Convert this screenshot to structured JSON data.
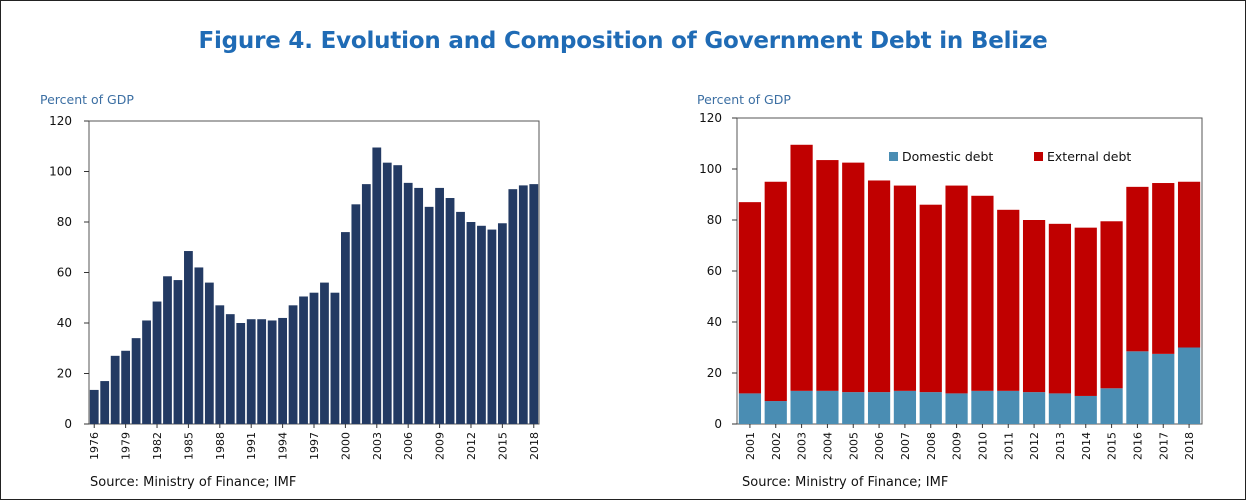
{
  "figure": {
    "title": "Figure 4. Evolution and Composition of Government Debt in Belize"
  },
  "chart_data": [
    {
      "type": "bar",
      "ylabel": "Percent of GDP",
      "source": "Source: Ministry of Finance; IMF",
      "ylim": [
        0,
        120
      ],
      "yticks": [
        0,
        20,
        40,
        60,
        80,
        100,
        120
      ],
      "x": [
        1976,
        1977,
        1978,
        1979,
        1980,
        1981,
        1982,
        1983,
        1984,
        1985,
        1986,
        1987,
        1988,
        1989,
        1990,
        1991,
        1992,
        1993,
        1994,
        1995,
        1996,
        1997,
        1998,
        1999,
        2000,
        2001,
        2002,
        2003,
        2004,
        2005,
        2006,
        2007,
        2008,
        2009,
        2010,
        2011,
        2012,
        2013,
        2014,
        2015,
        2016,
        2017,
        2018
      ],
      "x_tick_labels": [
        "1976",
        "1979",
        "1982",
        "1985",
        "1988",
        "1991",
        "1994",
        "1997",
        "2000",
        "2003",
        "2006",
        "2009",
        "2012",
        "2015",
        "2018"
      ],
      "values": [
        13.5,
        17,
        27,
        29,
        34,
        41,
        48.5,
        58.5,
        57,
        68.5,
        62,
        56,
        47,
        43.5,
        40,
        41.5,
        41.5,
        41,
        42,
        47,
        50.5,
        52,
        56,
        52,
        76,
        87,
        95,
        109.5,
        103.5,
        102.5,
        95.5,
        93.5,
        86,
        93.5,
        89.5,
        84,
        80,
        78.5,
        77,
        79.5,
        93,
        94.5,
        95
      ],
      "colors": {
        "bar": "#233a63"
      },
      "grid": false
    },
    {
      "type": "bar",
      "stacked": true,
      "ylabel": "Percent of GDP",
      "source": "Source: Ministry of Finance; IMF",
      "ylim": [
        0,
        120
      ],
      "yticks": [
        0,
        20,
        40,
        60,
        80,
        100,
        120
      ],
      "categories": [
        "2001",
        "2002",
        "2003",
        "2004",
        "2005",
        "2006",
        "2007",
        "2008",
        "2009",
        "2010",
        "2011",
        "2012",
        "2013",
        "2014",
        "2015",
        "2016",
        "2017",
        "2018"
      ],
      "series": [
        {
          "name": "Domestic debt",
          "color": "#4a8db3",
          "values": [
            12,
            9,
            13,
            13,
            12.5,
            12.5,
            13,
            12.5,
            12,
            13,
            13,
            12.5,
            12,
            11,
            14,
            28.5,
            27.5,
            30
          ]
        },
        {
          "name": "External debt",
          "color": "#c00000",
          "values": [
            75,
            86,
            96.5,
            90.5,
            90,
            83,
            80.5,
            73.5,
            81.5,
            76.5,
            71,
            67.5,
            66.5,
            66,
            65.5,
            64.5,
            67,
            65
          ]
        }
      ],
      "legend": "top-center",
      "grid": false
    }
  ]
}
